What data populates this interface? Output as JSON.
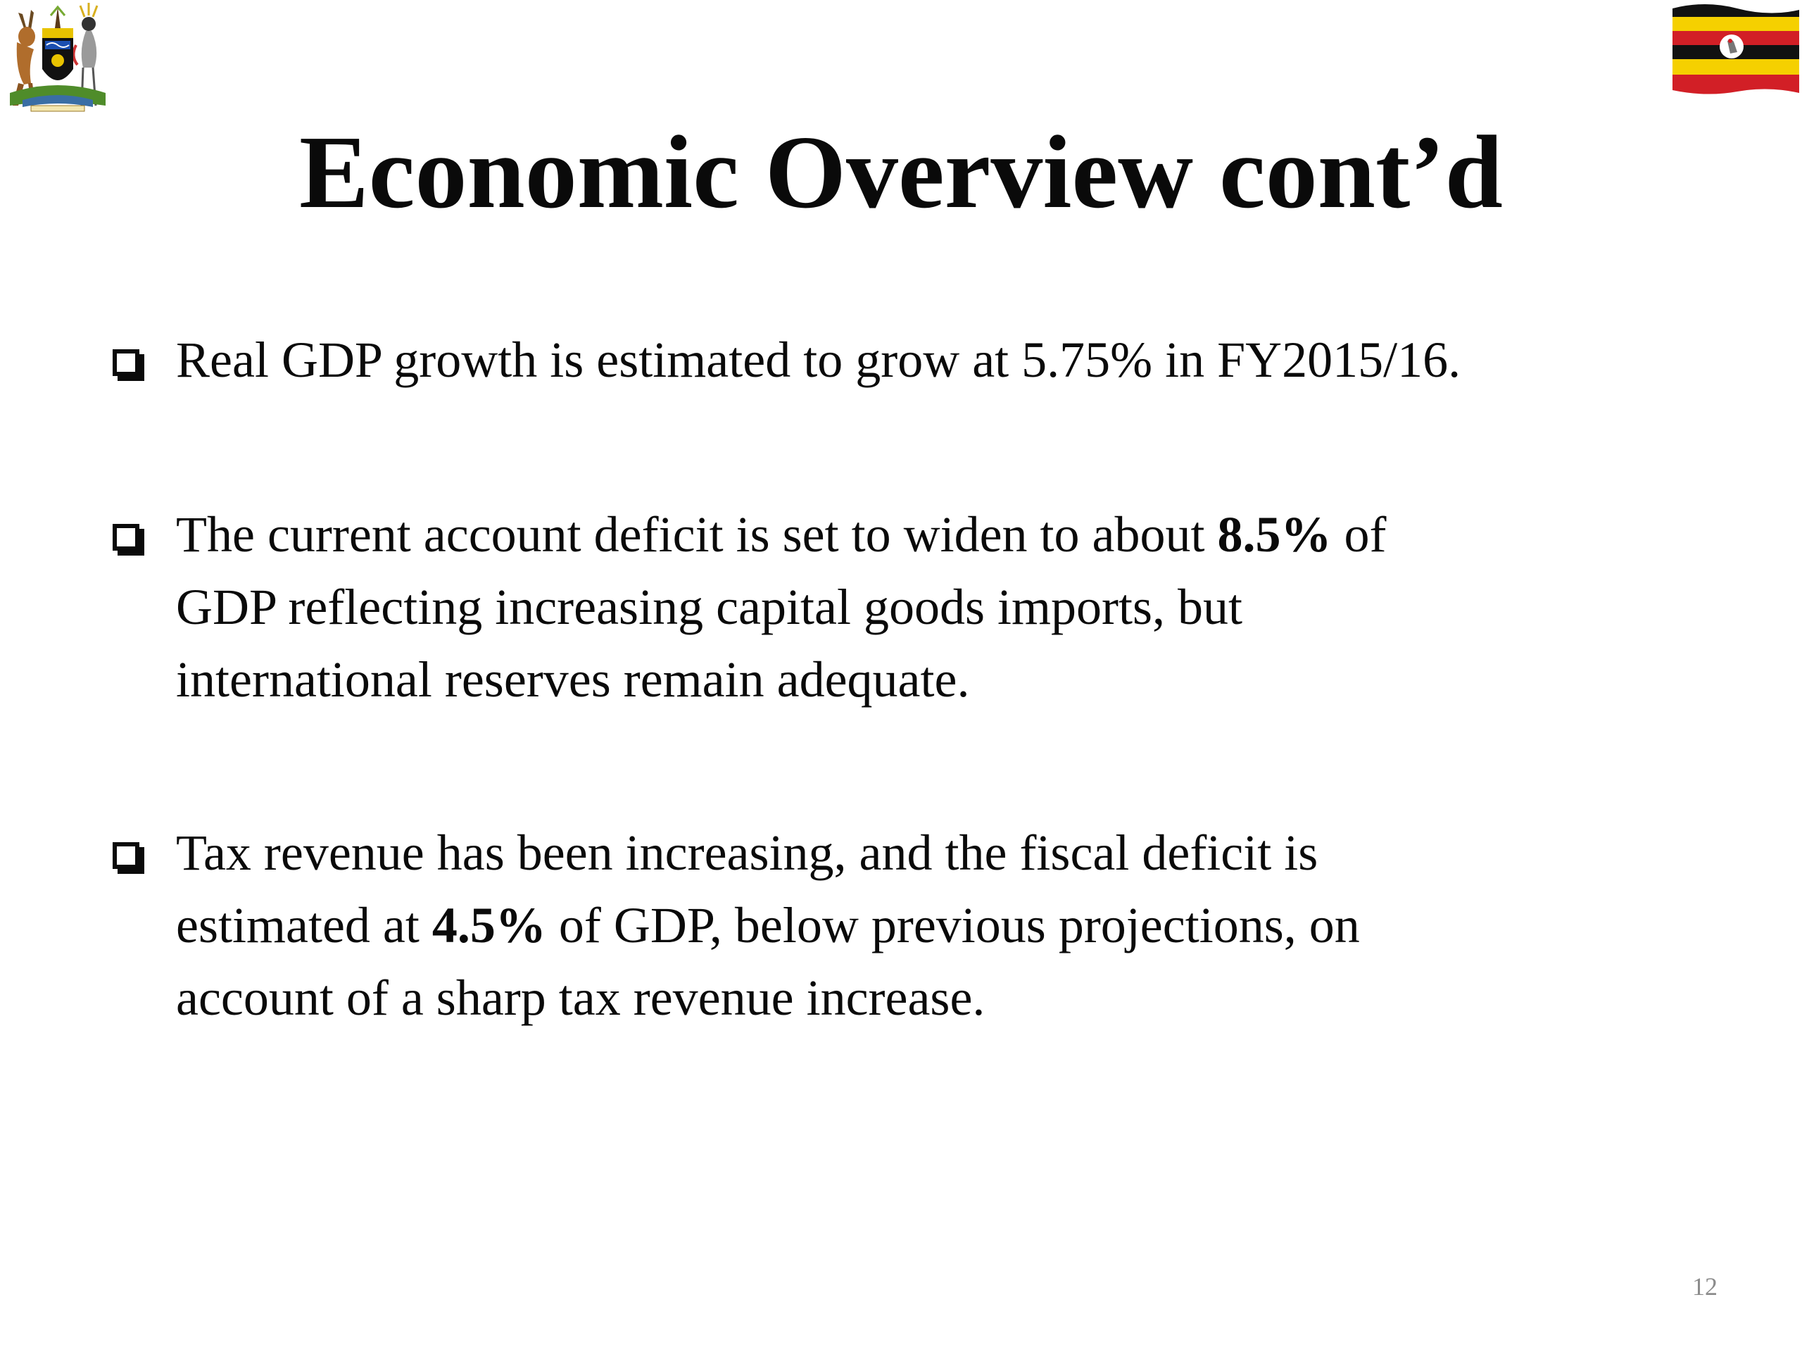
{
  "slide": {
    "title": "Economic Overview cont’d",
    "bullets": [
      {
        "lines": [
          {
            "parts": [
              {
                "text": "Real GDP growth is  estimated to grow at 5.75% in FY2015/16.",
                "bold": false
              }
            ]
          }
        ]
      },
      {
        "lines": [
          {
            "parts": [
              {
                "text": "The current account deficit is set to widen to about ",
                "bold": false
              },
              {
                "text": "8.5%",
                "bold": true
              },
              {
                "text": " of",
                "bold": false
              }
            ]
          },
          {
            "parts": [
              {
                "text": "GDP reflecting increasing capital goods imports, but",
                "bold": false
              }
            ]
          },
          {
            "parts": [
              {
                "text": "international reserves remain adequate.",
                "bold": false
              }
            ]
          }
        ]
      },
      {
        "lines": [
          {
            "parts": [
              {
                "text": "Tax revenue has been increasing, and the fiscal deficit is",
                "bold": false
              }
            ]
          },
          {
            "parts": [
              {
                "text": "estimated at ",
                "bold": false
              },
              {
                "text": "4.5%",
                "bold": true
              },
              {
                "text": " of  GDP, below previous projections, on",
                "bold": false
              }
            ]
          },
          {
            "parts": [
              {
                "text": "account of  a sharp tax revenue increase.",
                "bold": false
              }
            ]
          }
        ]
      }
    ],
    "page_number": "12"
  },
  "colors": {
    "flag_black": "#111111",
    "flag_yellow": "#f5d000",
    "flag_red": "#d21f26",
    "text": "#0a0a0a"
  },
  "icons": {
    "coat_of_arms": "uganda-coat-of-arms-icon",
    "flag": "uganda-flag-icon",
    "bullet": "checkbox-bullet-icon"
  }
}
